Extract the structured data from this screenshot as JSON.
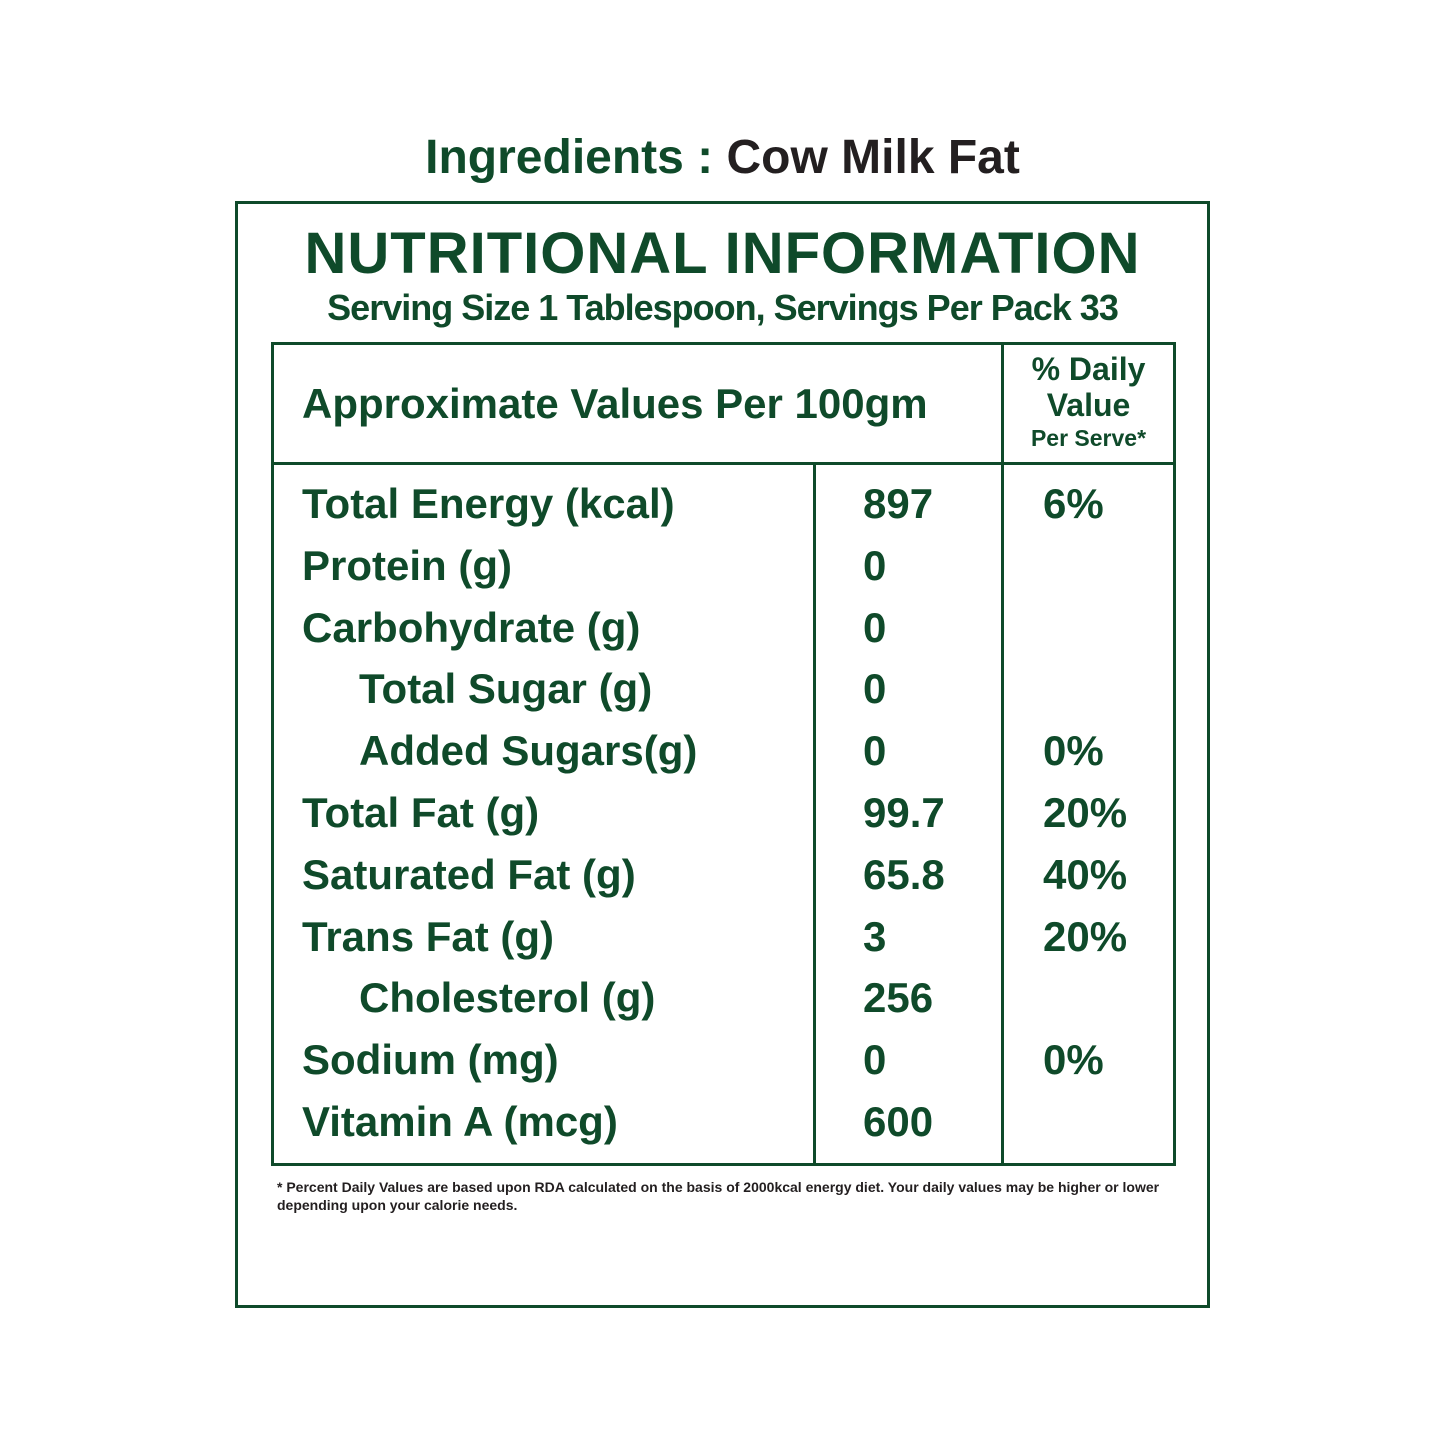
{
  "ingredients": {
    "label": "Ingredients : ",
    "value": "Cow Milk Fat"
  },
  "panel": {
    "title": "NUTRITIONAL INFORMATION",
    "serving": "Serving Size 1 Tablespoon, Servings Per Pack 33"
  },
  "table": {
    "header_left": "Approximate Values Per 100gm",
    "header_dv_line1": "% Daily",
    "header_dv_line2": "Value",
    "header_dv_line3": "Per Serve*",
    "rows": [
      {
        "name": "Total Energy (kcal)",
        "value": "897",
        "dv": "6%"
      },
      {
        "name": "Protein (g)",
        "value": "0",
        "dv": ""
      },
      {
        "name": "Carbohydrate (g)",
        "value": "0",
        "dv": ""
      },
      {
        "name": "Total Sugar (g)",
        "value": "0",
        "dv": ""
      },
      {
        "name": "Added Sugars(g)",
        "value": "0",
        "dv": "0%"
      },
      {
        "name": "Total Fat (g)",
        "value": "99.7",
        "dv": "20%"
      },
      {
        "name": "Saturated Fat (g)",
        "value": "65.8",
        "dv": "40%"
      },
      {
        "name": "Trans Fat (g)",
        "value": "3",
        "dv": "20%"
      },
      {
        "name": "Cholesterol (g)",
        "value": "256",
        "dv": ""
      },
      {
        "name": "Sodium (mg)",
        "value": "0",
        "dv": "0%"
      },
      {
        "name": "Vitamin A (mcg)",
        "value": "600",
        "dv": ""
      }
    ]
  },
  "footnote": "* Percent Daily Values are based upon RDA calculated on the basis of 2000kcal energy diet. Your daily values may be higher or lower depending upon your calorie needs."
}
